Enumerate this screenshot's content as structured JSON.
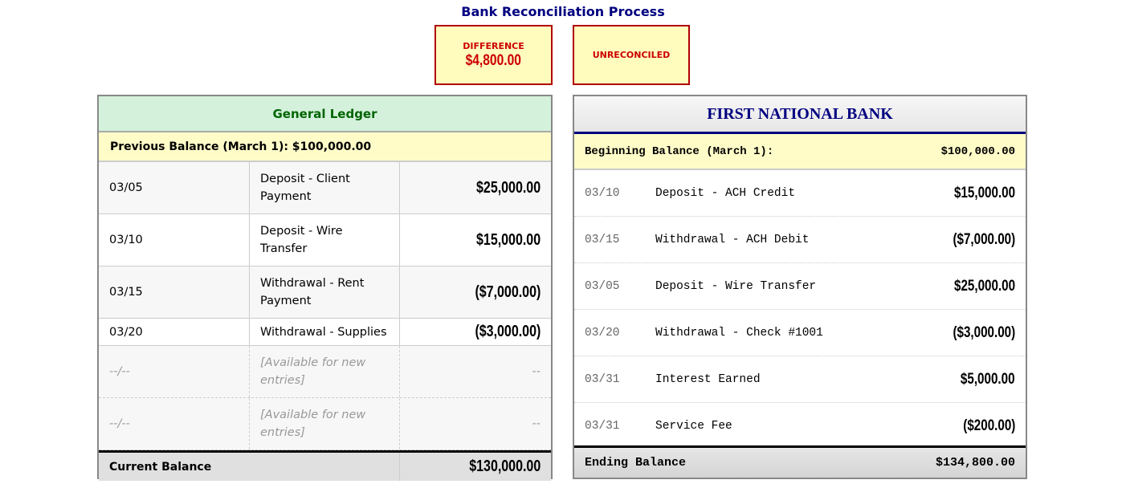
{
  "title": "Bank Reconciliation Process",
  "status": {
    "difference_label": "DIFFERENCE",
    "difference_value": "$4,800.00",
    "state": "UNRECONCILED",
    "color": "#cc0000"
  },
  "ledger": {
    "title": "General Ledger",
    "previous_balance": "Previous Balance (March 1): $100,000.00",
    "rows": [
      {
        "date": "03/05",
        "desc": "Deposit - Client Payment",
        "amount": "$25,000.00"
      },
      {
        "date": "03/10",
        "desc": "Deposit - Wire Transfer",
        "amount": "$15,000.00"
      },
      {
        "date": "03/15",
        "desc": "Withdrawal - Rent Payment",
        "amount": "($7,000.00)"
      },
      {
        "date": "03/20",
        "desc": "Withdrawal - Supplies",
        "amount": "($3,000.00)"
      }
    ],
    "empty_rows": [
      {
        "date": "--/--",
        "desc": "[Available for new entries]",
        "amount": "--"
      },
      {
        "date": "--/--",
        "desc": "[Available for new entries]",
        "amount": "--"
      }
    ],
    "footer_label": "Current Balance",
    "footer_value": "$130,000.00"
  },
  "bank": {
    "title": "FIRST NATIONAL BANK",
    "beginning_label": "Beginning Balance (March 1):",
    "beginning_value": "$100,000.00",
    "rows": [
      {
        "date": "03/10",
        "desc": "Deposit - ACH Credit",
        "amount": "$15,000.00"
      },
      {
        "date": "03/15",
        "desc": "Withdrawal - ACH Debit",
        "amount": "($7,000.00)"
      },
      {
        "date": "03/05",
        "desc": "Deposit - Wire Transfer",
        "amount": "$25,000.00"
      },
      {
        "date": "03/20",
        "desc": "Withdrawal - Check #1001",
        "amount": "($3,000.00)"
      },
      {
        "date": "03/31",
        "desc": "Interest Earned",
        "amount": "$5,000.00"
      },
      {
        "date": "03/31",
        "desc": "Service Fee",
        "amount": "($200.00)"
      }
    ],
    "footer_label": "Ending Balance",
    "footer_value": "$134,800.00"
  }
}
